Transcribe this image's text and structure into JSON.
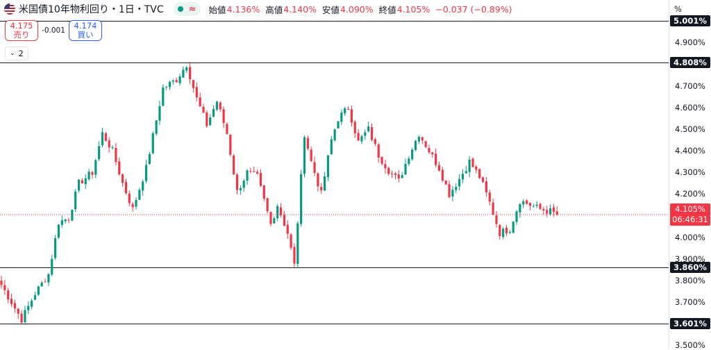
{
  "header": {
    "flag_icon": "us-flag-icon",
    "title": "米国債10年物利回り・1日・TVC",
    "market_status_icon": "market-open-dot-icon",
    "wave_symbol": "≈",
    "ohlc": [
      {
        "label": "始値",
        "value": "4.136%"
      },
      {
        "label": "高値",
        "value": "4.140%"
      },
      {
        "label": "安値",
        "value": "4.090%"
      },
      {
        "label": "終値",
        "value": "4.105%"
      }
    ],
    "change": "−0.037 (−0.89%)"
  },
  "trade": {
    "sell_price": "4.175",
    "sell_label": "売り",
    "spread": "-0.001",
    "buy_price": "4.174",
    "buy_label": "買い"
  },
  "indicators_toggle": {
    "icon": "chevron-down-icon",
    "count": "2"
  },
  "axis": {
    "unit": "%"
  },
  "chart_data": {
    "type": "candlestick",
    "ylim": [
      3.5,
      5.0
    ],
    "yticks": [
      "3.500%",
      "3.600%",
      "3.700%",
      "3.800%",
      "3.900%",
      "4.000%",
      "4.100%",
      "4.200%",
      "4.300%",
      "4.400%",
      "4.500%",
      "4.600%",
      "4.700%",
      "4.800%",
      "4.900%",
      "5.001%"
    ],
    "horizontal_lines": [
      {
        "value": 5.001,
        "label": "5.001%"
      },
      {
        "value": 4.808,
        "label": "4.808%"
      },
      {
        "value": 3.86,
        "label": "3.860%"
      },
      {
        "value": 3.601,
        "label": "3.601%"
      }
    ],
    "last_price": {
      "value": 4.105,
      "label": "4.105%",
      "countdown": "06:46:31"
    },
    "colors": {
      "up": "#089981",
      "down": "#f23645",
      "line": "#131722"
    },
    "closes_path": [
      [
        0,
        3.78
      ],
      [
        6,
        3.62
      ],
      [
        10,
        3.74
      ],
      [
        14,
        3.83
      ],
      [
        17,
        4.07
      ],
      [
        20,
        4.09
      ],
      [
        23,
        4.25
      ],
      [
        27,
        4.3
      ],
      [
        30,
        4.48
      ],
      [
        33,
        4.4
      ],
      [
        36,
        4.25
      ],
      [
        39,
        4.13
      ],
      [
        43,
        4.32
      ],
      [
        48,
        4.69
      ],
      [
        52,
        4.73
      ],
      [
        55,
        4.8
      ],
      [
        58,
        4.64
      ],
      [
        61,
        4.52
      ],
      [
        64,
        4.63
      ],
      [
        67,
        4.48
      ],
      [
        70,
        4.21
      ],
      [
        73,
        4.3
      ],
      [
        76,
        4.28
      ],
      [
        80,
        4.06
      ],
      [
        82,
        4.15
      ],
      [
        85,
        4.02
      ],
      [
        87,
        3.87
      ],
      [
        90,
        4.48
      ],
      [
        92,
        4.35
      ],
      [
        95,
        4.2
      ],
      [
        98,
        4.45
      ],
      [
        100,
        4.55
      ],
      [
        103,
        4.6
      ],
      [
        106,
        4.44
      ],
      [
        109,
        4.5
      ],
      [
        112,
        4.38
      ],
      [
        115,
        4.31
      ],
      [
        118,
        4.26
      ],
      [
        121,
        4.38
      ],
      [
        124,
        4.48
      ],
      [
        127,
        4.4
      ],
      [
        130,
        4.32
      ],
      [
        133,
        4.2
      ],
      [
        136,
        4.27
      ],
      [
        139,
        4.35
      ],
      [
        142,
        4.28
      ],
      [
        145,
        4.16
      ],
      [
        148,
        4.02
      ],
      [
        151,
        4.04
      ],
      [
        154,
        4.17
      ],
      [
        157,
        4.15
      ],
      [
        160,
        4.13
      ],
      [
        163,
        4.12
      ],
      [
        165,
        4.105
      ]
    ]
  }
}
